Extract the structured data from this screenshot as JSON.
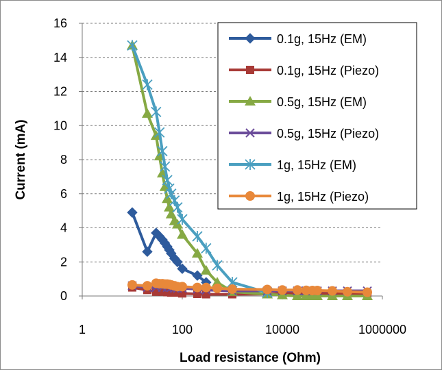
{
  "chart_data": {
    "type": "scatter",
    "xlabel": "Load resistance (Ohm)",
    "ylabel": "Current (mA)",
    "x_scale": "log",
    "xlim": [
      1,
      1000000
    ],
    "ylim": [
      0,
      16
    ],
    "x_ticks": [
      1,
      100,
      10000,
      1000000
    ],
    "x_tick_labels": [
      "1",
      "100",
      "10000",
      "1000000"
    ],
    "y_ticks": [
      0,
      2,
      4,
      6,
      8,
      10,
      12,
      14,
      16
    ],
    "y_tick_labels": [
      "0",
      "2",
      "4",
      "6",
      "8",
      "10",
      "12",
      "14",
      "16"
    ],
    "grid": "horizontal dashed",
    "legend_position": "top-right",
    "series": [
      {
        "name": "0.1g, 15Hz (EM)",
        "color": "#2e5b9c",
        "marker": "diamond",
        "x": [
          10,
          20,
          30,
          35,
          40,
          45,
          50,
          55,
          60,
          70,
          80,
          100,
          200,
          300
        ],
        "y": [
          4.9,
          2.6,
          3.7,
          3.5,
          3.3,
          3.1,
          2.9,
          2.7,
          2.5,
          2.2,
          2.0,
          1.6,
          1.2,
          0.8
        ]
      },
      {
        "name": "0.1g, 15Hz (Piezo)",
        "color": "#a83a36",
        "marker": "square",
        "x": [
          10,
          20,
          30,
          40,
          50,
          60,
          70,
          80,
          100,
          200,
          300,
          1000,
          5000,
          10000,
          20000,
          30000,
          40000,
          50000,
          100000,
          200000,
          500000
        ],
        "y": [
          0.5,
          0.35,
          0.25,
          0.25,
          0.22,
          0.2,
          0.2,
          0.2,
          0.15,
          0.12,
          0.1,
          0.1,
          0.12,
          0.15,
          0.15,
          0.15,
          0.15,
          0.15,
          0.15,
          0.15,
          0.15
        ]
      },
      {
        "name": "0.5g, 15Hz (EM)",
        "color": "#86a944",
        "marker": "triangle",
        "x": [
          10,
          20,
          30,
          35,
          40,
          45,
          50,
          55,
          60,
          70,
          80,
          100,
          200,
          300,
          500,
          1000,
          5000,
          10000,
          20000,
          30000,
          40000,
          50000,
          100000,
          200000,
          500000
        ],
        "y": [
          14.7,
          10.7,
          9.4,
          8.2,
          7.2,
          6.4,
          5.7,
          5.2,
          4.8,
          4.4,
          4.2,
          3.6,
          2.5,
          1.5,
          0.8,
          0.25,
          0.1,
          0.05,
          0.0,
          0.0,
          0.0,
          0.0,
          0.0,
          0.0,
          0.0
        ]
      },
      {
        "name": "0.5g, 15Hz (Piezo)",
        "color": "#6b4c9a",
        "marker": "x",
        "x": [
          10,
          20,
          30,
          40,
          50,
          60,
          70,
          80,
          100,
          200,
          300,
          1000,
          5000,
          10000,
          20000,
          30000,
          40000,
          50000,
          100000,
          200000,
          500000
        ],
        "y": [
          0.6,
          0.5,
          0.5,
          0.5,
          0.5,
          0.5,
          0.45,
          0.45,
          0.45,
          0.4,
          0.35,
          0.3,
          0.3,
          0.3,
          0.3,
          0.3,
          0.3,
          0.3,
          0.3,
          0.3,
          0.3
        ]
      },
      {
        "name": "1g, 15Hz (EM)",
        "color": "#4a9fc0",
        "marker": "star",
        "x": [
          10,
          20,
          30,
          35,
          40,
          45,
          50,
          55,
          60,
          70,
          80,
          100,
          200,
          300,
          500,
          1000,
          5000
        ],
        "y": [
          14.7,
          12.4,
          10.8,
          9.6,
          8.5,
          7.6,
          6.8,
          6.3,
          6.0,
          5.6,
          5.2,
          4.5,
          3.5,
          2.8,
          1.8,
          0.8,
          0.2
        ]
      },
      {
        "name": "1g, 15Hz (Piezo)",
        "color": "#e8883a",
        "marker": "circle",
        "x": [
          10,
          20,
          30,
          35,
          40,
          45,
          50,
          55,
          60,
          70,
          80,
          100,
          200,
          300,
          500,
          1000,
          5000,
          10000,
          20000,
          30000,
          40000,
          50000,
          100000,
          200000,
          500000
        ],
        "y": [
          0.65,
          0.6,
          0.75,
          0.72,
          0.72,
          0.7,
          0.7,
          0.68,
          0.65,
          0.6,
          0.55,
          0.55,
          0.5,
          0.5,
          0.45,
          0.4,
          0.38,
          0.35,
          0.35,
          0.33,
          0.32,
          0.32,
          0.3,
          0.25,
          0.22
        ]
      }
    ]
  }
}
